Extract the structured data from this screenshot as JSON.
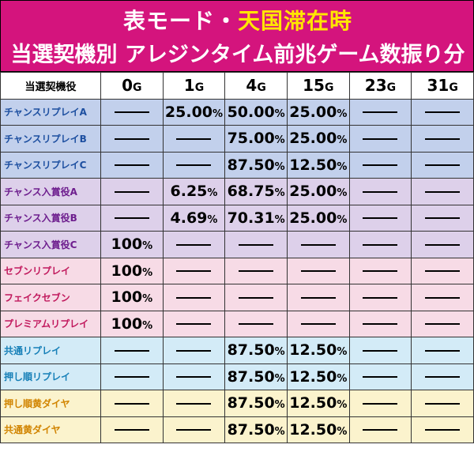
{
  "title": {
    "line1_prefix": "表モード・",
    "line1_highlight": "天国滞在時",
    "line2": "当選契機別 アレジンタイム前兆ゲーム数振り分け"
  },
  "table": {
    "corner_header": "当選契機役",
    "columns": [
      {
        "num": "0",
        "unit": "G"
      },
      {
        "num": "1",
        "unit": "G"
      },
      {
        "num": "4",
        "unit": "G"
      },
      {
        "num": "15",
        "unit": "G"
      },
      {
        "num": "23",
        "unit": "G"
      },
      {
        "num": "31",
        "unit": "G"
      }
    ],
    "rows": [
      {
        "name": "チャンスリプレイA",
        "group": "blue",
        "values": [
          null,
          "25.00",
          "50.00",
          "25.00",
          null,
          null
        ]
      },
      {
        "name": "チャンスリプレイB",
        "group": "blue",
        "values": [
          null,
          null,
          "75.00",
          "25.00",
          null,
          null
        ]
      },
      {
        "name": "チャンスリプレイC",
        "group": "blue",
        "values": [
          null,
          null,
          "87.50",
          "12.50",
          null,
          null
        ]
      },
      {
        "name": "チャンス入賞役A",
        "group": "purple",
        "values": [
          null,
          "6.25",
          "68.75",
          "25.00",
          null,
          null
        ]
      },
      {
        "name": "チャンス入賞役B",
        "group": "purple",
        "values": [
          null,
          "4.69",
          "70.31",
          "25.00",
          null,
          null
        ]
      },
      {
        "name": "チャンス入賞役C",
        "group": "purple",
        "values": [
          "100",
          null,
          null,
          null,
          null,
          null
        ]
      },
      {
        "name": "セブンリプレイ",
        "group": "pink",
        "values": [
          "100",
          null,
          null,
          null,
          null,
          null
        ]
      },
      {
        "name": "フェイクセブン",
        "group": "pink",
        "values": [
          "100",
          null,
          null,
          null,
          null,
          null
        ]
      },
      {
        "name": "プレミアムリプレイ",
        "group": "pink",
        "values": [
          "100",
          null,
          null,
          null,
          null,
          null
        ]
      },
      {
        "name": "共通リプレイ",
        "group": "lblue",
        "values": [
          null,
          null,
          "87.50",
          "12.50",
          null,
          null
        ]
      },
      {
        "name": "押し順リプレイ",
        "group": "lblue",
        "values": [
          null,
          null,
          "87.50",
          "12.50",
          null,
          null
        ]
      },
      {
        "name": "押し順黄ダイヤ",
        "group": "yellow",
        "values": [
          null,
          null,
          "87.50",
          "12.50",
          null,
          null
        ]
      },
      {
        "name": "共通黄ダイヤ",
        "group": "yellow",
        "values": [
          null,
          null,
          "87.50",
          "12.50",
          null,
          null
        ]
      }
    ],
    "percent_sign": "%"
  }
}
